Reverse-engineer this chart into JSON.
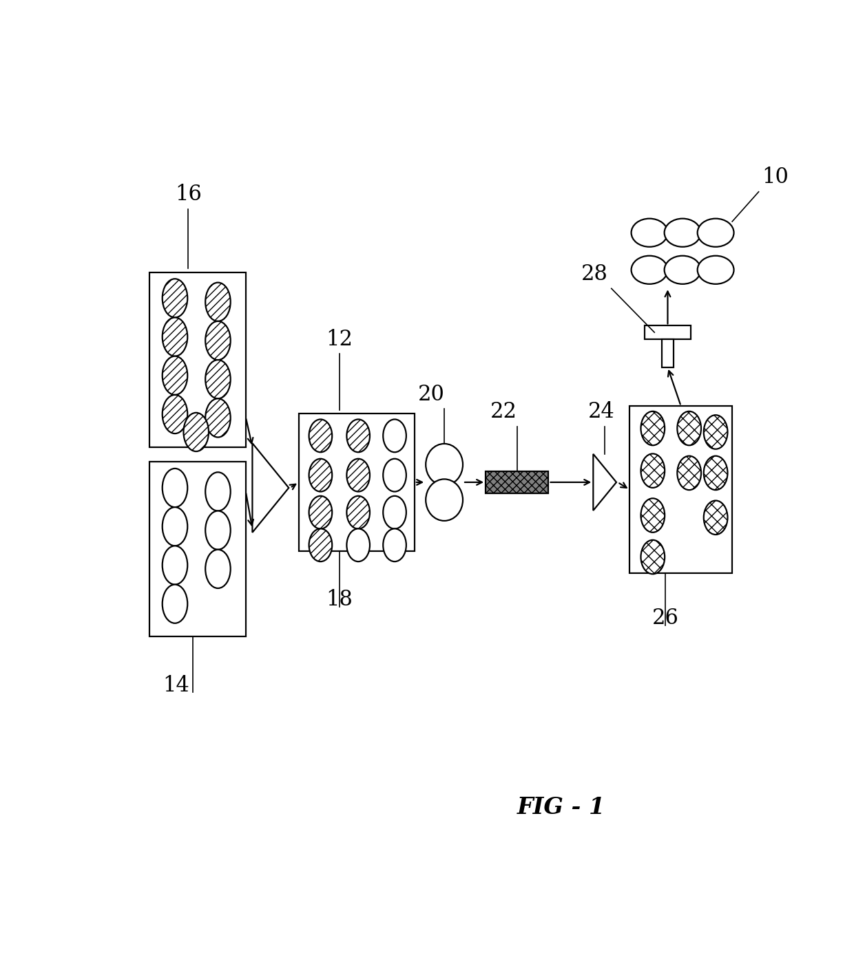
{
  "bg_color": "#ffffff",
  "fig_label": "FIG - 1",
  "label_fontsize": 24,
  "ref_fontsize": 22,
  "lw": 1.6,
  "ew": 0.038,
  "eh": 0.052
}
